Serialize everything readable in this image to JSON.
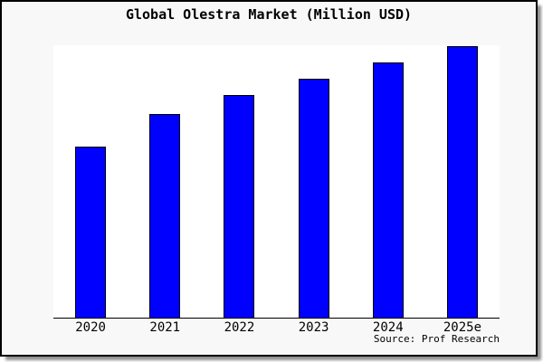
{
  "chart": {
    "title": "Global Olestra Market (Million USD)",
    "source_note": "Source: Prof Research"
  },
  "colors": {
    "bar_fill": "#0000FF",
    "bar_border": "#000000",
    "panel_background": "#f8f8f8",
    "plot_background": "#ffffff",
    "axis": "#000000",
    "text": "#000000",
    "shadow": "#8f8f8f"
  },
  "chart_data": {
    "type": "bar",
    "title": "Global Olestra Market (Million USD)",
    "categories": [
      "2020",
      "2021",
      "2022",
      "2023",
      "2024",
      "2025e"
    ],
    "values": [
      63,
      75,
      82,
      88,
      94,
      100
    ],
    "value_note": "No y-axis ticks or data labels are shown in the image; values are bar heights normalized so that the tallest bar (2025e) = 100.",
    "xlabel": "",
    "ylabel": "",
    "ylim": [
      0,
      100
    ],
    "grid": false,
    "legend": false,
    "bar_color": "#0000FF",
    "annotations": [
      "Source: Prof Research"
    ]
  }
}
